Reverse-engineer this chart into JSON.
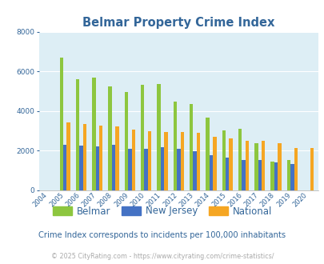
{
  "title": "Belmar Property Crime Index",
  "years": [
    2004,
    2005,
    2006,
    2007,
    2008,
    2009,
    2010,
    2011,
    2012,
    2013,
    2014,
    2015,
    2016,
    2017,
    2018,
    2019,
    2020
  ],
  "belmar": [
    null,
    6700,
    5600,
    5700,
    5250,
    4950,
    5300,
    5370,
    4450,
    4350,
    3650,
    3000,
    3100,
    2380,
    1430,
    1530,
    null
  ],
  "new_jersey": [
    null,
    2300,
    2250,
    2200,
    2300,
    2070,
    2090,
    2180,
    2090,
    1960,
    1780,
    1640,
    1520,
    1510,
    1380,
    1300,
    null
  ],
  "national": [
    null,
    3420,
    3330,
    3250,
    3200,
    3060,
    2980,
    2950,
    2920,
    2900,
    2700,
    2620,
    2500,
    2500,
    2380,
    2130,
    2130
  ],
  "belmar_color": "#8dc63f",
  "nj_color": "#4472c4",
  "national_color": "#f5a623",
  "bg_color": "#ddeef5",
  "ylim": [
    0,
    8000
  ],
  "yticks": [
    0,
    2000,
    4000,
    6000,
    8000
  ],
  "subtitle": "Crime Index corresponds to incidents per 100,000 inhabitants",
  "footer": "© 2025 CityRating.com - https://www.cityrating.com/crime-statistics/",
  "legend_labels": [
    "Belmar",
    "New Jersey",
    "National"
  ],
  "bar_width": 0.22
}
